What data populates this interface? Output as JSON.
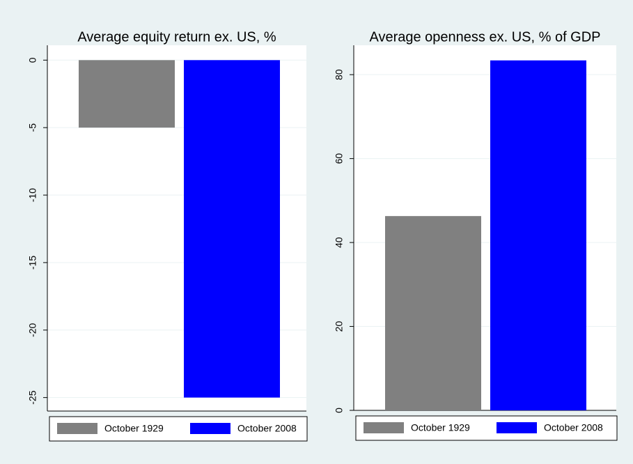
{
  "chart_data": [
    {
      "type": "bar",
      "title": "Average equity return ex. US, %",
      "series": [
        {
          "name": "October 1929",
          "color": "#808080",
          "values": [
            -5
          ]
        },
        {
          "name": "October 2008",
          "color": "#0000ff",
          "values": [
            -25
          ]
        }
      ],
      "ylim": [
        -26,
        1.1
      ],
      "yticks": [
        0,
        -5,
        -10,
        -15,
        -20,
        -25
      ],
      "grid": true
    },
    {
      "type": "bar",
      "title": "Average openness ex. US, % of GDP",
      "series": [
        {
          "name": "October 1929",
          "color": "#808080",
          "values": [
            46.3
          ]
        },
        {
          "name": "October 2008",
          "color": "#0000ff",
          "values": [
            83.4
          ]
        }
      ],
      "ylim": [
        0,
        87
      ],
      "yticks": [
        0,
        20,
        40,
        60,
        80
      ],
      "grid": true
    }
  ]
}
